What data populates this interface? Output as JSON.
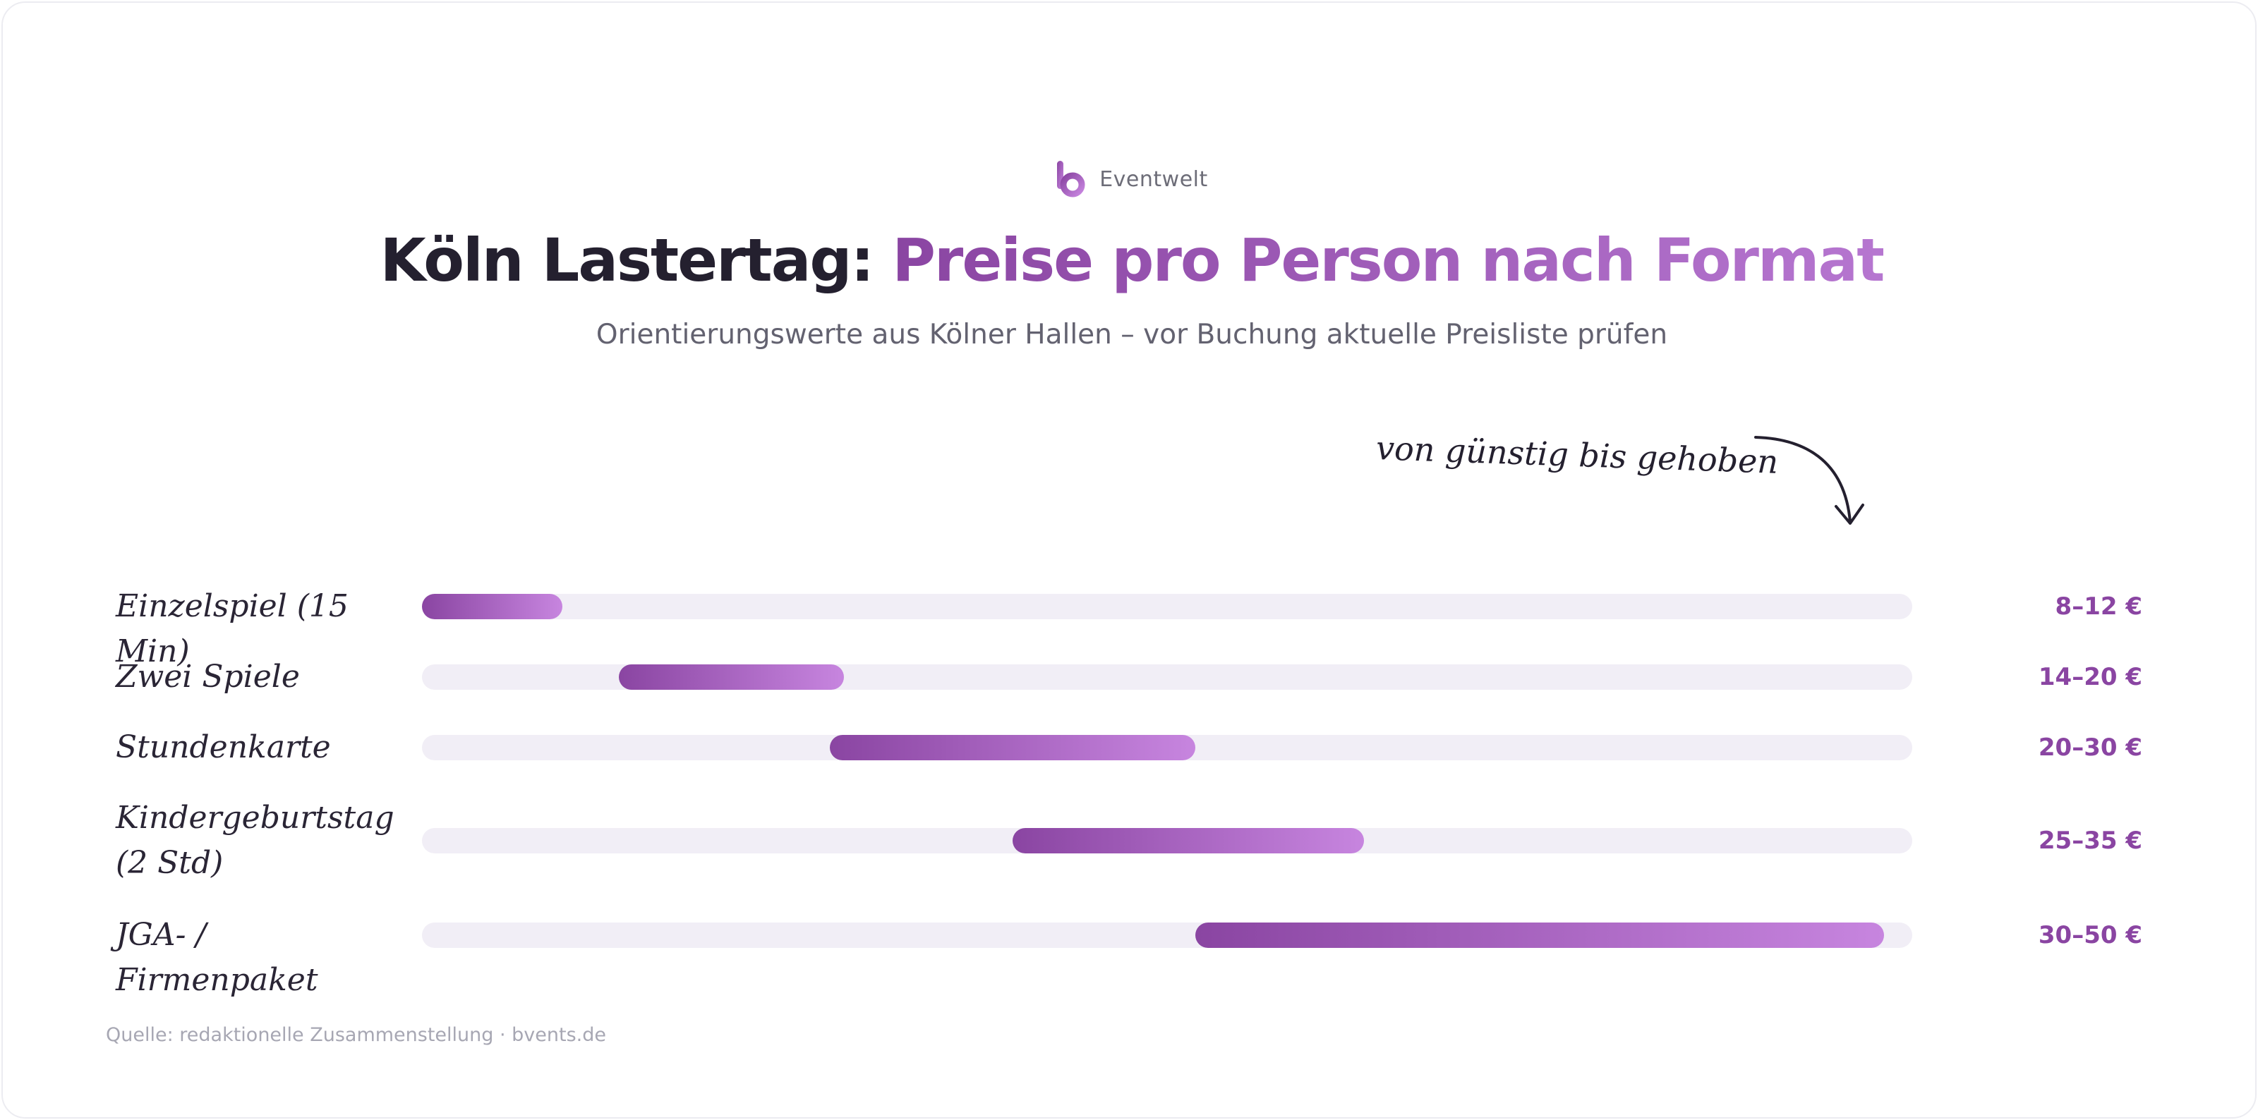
{
  "brand": {
    "name": "Eventwelt"
  },
  "chart_data": {
    "type": "bar",
    "title_plain": "Köln Lastertag:",
    "title_accent": "Preise pro Person nach Format",
    "subtitle": "Orientierungswerte aus Kölner Hallen – vor Buchung aktuelle Preisliste prüfen",
    "annotation": "von günstig bis gehoben",
    "unit": "€",
    "xlim": [
      0,
      50
    ],
    "categories": [
      "Einzelspiel (15 Min)",
      "Zwei Spiele",
      "Stundenkarte",
      "Kindergeburtstag (2 Std)",
      "JGA- / Firmenpaket"
    ],
    "ranges": [
      [
        0,
        10
      ],
      [
        14,
        30
      ],
      [
        29,
        55
      ],
      [
        42,
        67
      ],
      [
        55,
        104
      ]
    ],
    "ranges_source_note": "",
    "value_labels": [
      "8–12 €",
      "14–20 €",
      "20–30 €",
      "25–35 €",
      "30–50 €"
    ],
    "source": "Quelle: redaktionelle Zusammenstellung · bvents.de"
  },
  "colors": {
    "accent": "#8a45a2",
    "accent_light": "#c785df",
    "track": "#f1eef6",
    "text_dark": "#24202f"
  }
}
